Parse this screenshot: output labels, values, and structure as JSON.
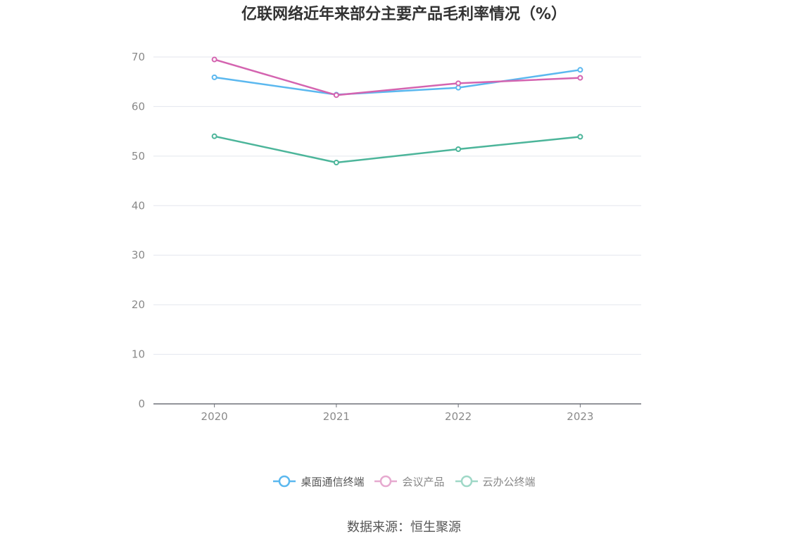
{
  "title": "亿联网络近年来部分主要产品毛利率情况（%）",
  "source": "数据来源：恒生聚源",
  "chart_data": {
    "type": "line",
    "title": "亿联网络近年来部分主要产品毛利率情况（%）",
    "categories": [
      "2020",
      "2021",
      "2022",
      "2023"
    ],
    "ylim": [
      0,
      70
    ],
    "yticks": [
      "0",
      "10",
      "20",
      "30",
      "40",
      "50",
      "60",
      "70"
    ],
    "grid": true,
    "legend_position": "bottom",
    "series": [
      {
        "name": "桌面通信终端",
        "values": [
          65.9,
          62.4,
          63.8,
          67.4
        ],
        "color": "#5bb8ef",
        "active": true
      },
      {
        "name": "会议产品",
        "values": [
          69.5,
          62.3,
          64.7,
          65.8
        ],
        "color": "#d464b0",
        "active": false,
        "legend_color": "#e6a9cf"
      },
      {
        "name": "云办公终端",
        "values": [
          54.0,
          48.7,
          51.4,
          53.9
        ],
        "color": "#4cb59a",
        "active": false,
        "legend_color": "#9fd8c7"
      }
    ]
  }
}
